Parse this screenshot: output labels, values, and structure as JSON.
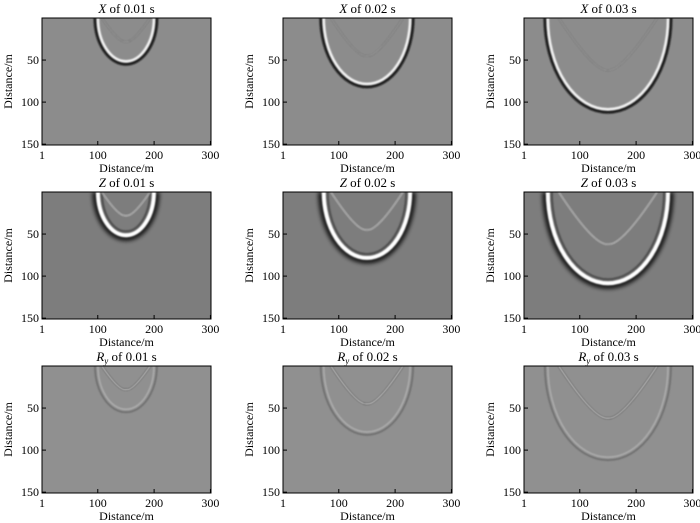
{
  "chart_data": {
    "type": "heatmap",
    "colormap": "grayscale",
    "layout": {
      "rows": 3,
      "cols": 3
    },
    "panels": [
      {
        "component": "X",
        "subscript": "",
        "time_text": "of 0.01 s",
        "time_s": 0.01,
        "background": "#8c8c8c",
        "xlabel": "Distance/m",
        "ylabel": "Distance/m"
      },
      {
        "component": "X",
        "subscript": "",
        "time_text": "of 0.02 s",
        "time_s": 0.02,
        "background": "#8c8c8c",
        "xlabel": "Distance/m",
        "ylabel": "Distance/m"
      },
      {
        "component": "X",
        "subscript": "",
        "time_text": "of 0.03 s",
        "time_s": 0.03,
        "background": "#8c8c8c",
        "xlabel": "Distance/m",
        "ylabel": "Distance/m"
      },
      {
        "component": "Z",
        "subscript": "",
        "time_text": "of 0.01 s",
        "time_s": 0.01,
        "background": "#7d7d7d",
        "xlabel": "Distance/m",
        "ylabel": "Distance/m"
      },
      {
        "component": "Z",
        "subscript": "",
        "time_text": "of 0.02 s",
        "time_s": 0.02,
        "background": "#7d7d7d",
        "xlabel": "Distance/m",
        "ylabel": "Distance/m"
      },
      {
        "component": "Z",
        "subscript": "",
        "time_text": "of 0.03 s",
        "time_s": 0.03,
        "background": "#7d7d7d",
        "xlabel": "Distance/m",
        "ylabel": "Distance/m"
      },
      {
        "component": "R",
        "subscript": "y",
        "time_text": "of 0.01 s",
        "time_s": 0.01,
        "background": "#909090",
        "xlabel": "Distance/m",
        "ylabel": "Distance/m"
      },
      {
        "component": "R",
        "subscript": "y",
        "time_text": "of 0.02 s",
        "time_s": 0.02,
        "background": "#909090",
        "xlabel": "Distance/m",
        "ylabel": "Distance/m"
      },
      {
        "component": "R",
        "subscript": "y",
        "time_text": "of 0.03 s",
        "time_s": 0.03,
        "background": "#909090",
        "xlabel": "Distance/m",
        "ylabel": "Distance/m"
      }
    ],
    "x_ticks": [
      1,
      100,
      200,
      300
    ],
    "y_ticks": [
      50,
      100,
      150
    ],
    "xlim": [
      1,
      301
    ],
    "ylim": [
      0,
      151
    ],
    "wavefronts": {
      "source_x": 150,
      "outer_radius": {
        "0.01": 55,
        "0.02": 82,
        "0.03": 112
      },
      "inner_apex_depth": {
        "0.01": 28,
        "0.02": 45,
        "0.03": 62
      }
    }
  }
}
